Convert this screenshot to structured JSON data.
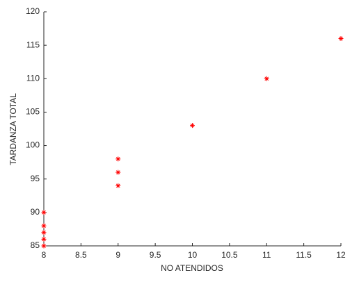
{
  "chart_data": {
    "type": "scatter",
    "xlabel": "NO ATENDIDOS",
    "ylabel": "TARDANZA TOTAL",
    "series": [
      {
        "name": null,
        "color": "#ff0000",
        "x": [
          8,
          8,
          8,
          8,
          8,
          9,
          9,
          9,
          10,
          11,
          12
        ],
        "values": [
          85,
          86,
          87,
          88,
          90,
          94,
          96,
          98,
          103,
          110,
          116
        ]
      }
    ],
    "xlim": [
      8,
      12
    ],
    "xticks": [
      8,
      8.5,
      9,
      9.5,
      10,
      10.5,
      11,
      11.5,
      12
    ],
    "ylim": [
      85,
      120
    ],
    "yticks": [
      85,
      90,
      95,
      100,
      105,
      110,
      115,
      120
    ],
    "grid": false
  }
}
